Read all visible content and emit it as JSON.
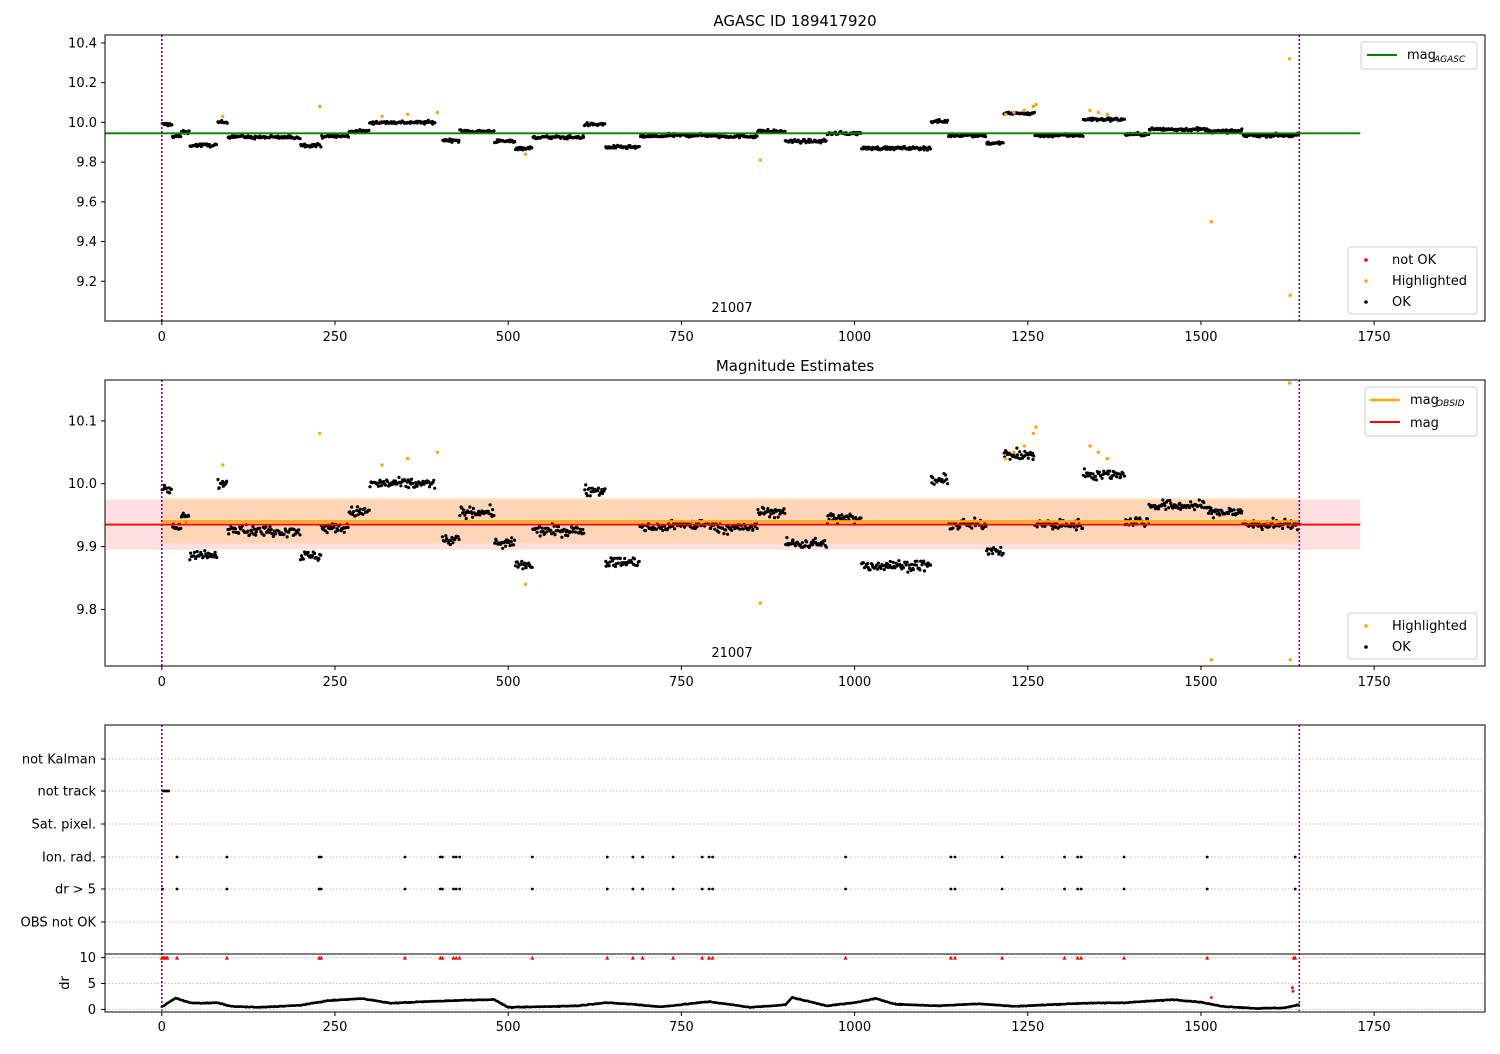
{
  "chart_data": [
    {
      "type": "scatter",
      "title": "AGASC ID 189417920",
      "xlim": [
        -82,
        1910
      ],
      "ylim": [
        9.0,
        10.44
      ],
      "xticks": [
        "0",
        "250",
        "500",
        "750",
        "1000",
        "1250",
        "1500",
        "1750"
      ],
      "yticks": [
        "9.2",
        "9.4",
        "9.6",
        "9.8",
        "10.0",
        "10.2",
        "10.4"
      ],
      "obsid_label": "21007",
      "obs_bounds": [
        0,
        1642
      ],
      "mag_agasc": 9.945,
      "mag_line_xrange": [
        -82,
        1730
      ],
      "colors": {
        "ok": "#000000",
        "highlighted": "#ffa500",
        "not_ok": "#ff0000",
        "agasc_line": "#008000",
        "bounds": "#800080"
      },
      "legend_top": [
        {
          "label": "mag",
          "sub": "AGASC",
          "color": "#008000",
          "kind": "line"
        }
      ],
      "legend_bottom": [
        {
          "label": "not OK",
          "color": "#ff0000",
          "kind": "dot"
        },
        {
          "label": "Highlighted",
          "color": "#ffa500",
          "kind": "dot"
        },
        {
          "label": "OK",
          "color": "#000000",
          "kind": "dot"
        }
      ],
      "segments": [
        [
          0,
          15,
          9.99
        ],
        [
          15,
          28,
          9.93
        ],
        [
          28,
          40,
          9.95
        ],
        [
          40,
          80,
          9.885
        ],
        [
          80,
          95,
          10.0
        ],
        [
          95,
          120,
          9.93
        ],
        [
          120,
          200,
          9.925
        ],
        [
          200,
          230,
          9.885
        ],
        [
          230,
          270,
          9.93
        ],
        [
          270,
          300,
          9.955
        ],
        [
          300,
          395,
          10.0
        ],
        [
          405,
          430,
          9.91
        ],
        [
          430,
          480,
          9.955
        ],
        [
          480,
          510,
          9.905
        ],
        [
          510,
          535,
          9.87
        ],
        [
          535,
          610,
          9.925
        ],
        [
          610,
          640,
          9.99
        ],
        [
          640,
          690,
          9.875
        ],
        [
          690,
          730,
          9.93
        ],
        [
          730,
          800,
          9.935
        ],
        [
          800,
          860,
          9.93
        ],
        [
          860,
          900,
          9.955
        ],
        [
          900,
          960,
          9.905
        ],
        [
          960,
          1010,
          9.945
        ],
        [
          1010,
          1110,
          9.87
        ],
        [
          1110,
          1135,
          10.005
        ],
        [
          1135,
          1190,
          9.935
        ],
        [
          1190,
          1215,
          9.895
        ],
        [
          1215,
          1260,
          10.045
        ],
        [
          1260,
          1330,
          9.935
        ],
        [
          1330,
          1390,
          10.015
        ],
        [
          1390,
          1425,
          9.94
        ],
        [
          1425,
          1510,
          9.965
        ],
        [
          1510,
          1560,
          9.955
        ],
        [
          1560,
          1642,
          9.935
        ]
      ],
      "highlighted_points": [
        [
          88,
          10.03
        ],
        [
          228,
          10.08
        ],
        [
          318,
          10.03
        ],
        [
          355,
          10.04
        ],
        [
          398,
          10.05
        ],
        [
          525,
          9.84
        ],
        [
          864,
          9.81
        ],
        [
          1218,
          10.04
        ],
        [
          1230,
          10.05
        ],
        [
          1245,
          10.06
        ],
        [
          1258,
          10.08
        ],
        [
          1262,
          10.09
        ],
        [
          1340,
          10.06
        ],
        [
          1352,
          10.05
        ],
        [
          1365,
          10.04
        ],
        [
          1515,
          9.5
        ],
        [
          1628,
          10.32
        ],
        [
          1629,
          9.13
        ]
      ]
    },
    {
      "type": "scatter",
      "title": "Magnitude Estimates",
      "xlim": [
        -82,
        1910
      ],
      "ylim": [
        9.71,
        10.165
      ],
      "xticks": [
        "0",
        "250",
        "500",
        "750",
        "1000",
        "1250",
        "1500",
        "1750"
      ],
      "yticks": [
        "9.8",
        "9.9",
        "10.0",
        "10.1"
      ],
      "obsid_label": "21007",
      "obs_bounds": [
        0,
        1642
      ],
      "mag_obsid": 9.94,
      "mag_obsid_band": [
        9.905,
        9.978
      ],
      "mag": 9.935,
      "mag_band": [
        9.895,
        9.975
      ],
      "mag_line_xrange": [
        -82,
        1730
      ],
      "colors": {
        "ok": "#000000",
        "highlighted": "#ffa500",
        "mag": "#ff0000",
        "mag_obsid": "#ffa500",
        "bounds": "#800080"
      },
      "legend_top": [
        {
          "label": "mag",
          "sub": "OBSID",
          "color": "#ffa500",
          "kind": "line"
        },
        {
          "label": "mag",
          "sub": "",
          "color": "#ff0000",
          "kind": "line"
        }
      ],
      "legend_bottom": [
        {
          "label": "Highlighted",
          "color": "#ffa500",
          "kind": "dot"
        },
        {
          "label": "OK",
          "color": "#000000",
          "kind": "dot"
        }
      ],
      "segments": [
        [
          0,
          15,
          9.99
        ],
        [
          15,
          28,
          9.93
        ],
        [
          28,
          40,
          9.95
        ],
        [
          40,
          80,
          9.885
        ],
        [
          80,
          95,
          10.0
        ],
        [
          95,
          120,
          9.93
        ],
        [
          120,
          200,
          9.925
        ],
        [
          200,
          230,
          9.885
        ],
        [
          230,
          270,
          9.93
        ],
        [
          270,
          300,
          9.955
        ],
        [
          300,
          395,
          10.0
        ],
        [
          405,
          430,
          9.91
        ],
        [
          430,
          480,
          9.955
        ],
        [
          480,
          510,
          9.905
        ],
        [
          510,
          535,
          9.87
        ],
        [
          535,
          610,
          9.925
        ],
        [
          610,
          640,
          9.99
        ],
        [
          640,
          690,
          9.875
        ],
        [
          690,
          730,
          9.93
        ],
        [
          730,
          800,
          9.935
        ],
        [
          800,
          860,
          9.93
        ],
        [
          860,
          900,
          9.955
        ],
        [
          900,
          960,
          9.905
        ],
        [
          960,
          1010,
          9.945
        ],
        [
          1010,
          1110,
          9.87
        ],
        [
          1110,
          1135,
          10.005
        ],
        [
          1135,
          1190,
          9.935
        ],
        [
          1190,
          1215,
          9.895
        ],
        [
          1215,
          1260,
          10.045
        ],
        [
          1260,
          1330,
          9.935
        ],
        [
          1330,
          1390,
          10.015
        ],
        [
          1390,
          1425,
          9.94
        ],
        [
          1425,
          1510,
          9.965
        ],
        [
          1510,
          1560,
          9.955
        ],
        [
          1560,
          1642,
          9.935
        ]
      ],
      "highlighted_points": [
        [
          88,
          10.03
        ],
        [
          228,
          10.08
        ],
        [
          318,
          10.03
        ],
        [
          355,
          10.04
        ],
        [
          398,
          10.05
        ],
        [
          525,
          9.84
        ],
        [
          864,
          9.81
        ],
        [
          1218,
          10.04
        ],
        [
          1230,
          10.05
        ],
        [
          1245,
          10.06
        ],
        [
          1258,
          10.08
        ],
        [
          1262,
          10.09
        ],
        [
          1340,
          10.06
        ],
        [
          1352,
          10.05
        ],
        [
          1365,
          10.04
        ],
        [
          1515,
          9.72
        ],
        [
          1628,
          10.16
        ],
        [
          1629,
          9.72
        ]
      ]
    },
    {
      "type": "scatter",
      "title": "",
      "xlim": [
        -82,
        1910
      ],
      "xticks": [
        "0",
        "250",
        "500",
        "750",
        "1000",
        "1250",
        "1500",
        "1750"
      ],
      "flag_rows": [
        "not Kalman",
        "not track",
        "Sat. pixel.",
        "Ion. rad.",
        "dr > 5",
        "OBS not OK"
      ],
      "obs_bounds": [
        0,
        1642
      ],
      "flag_times": {
        "not Kalman": [],
        "not track": [
          2,
          4,
          6,
          8,
          10
        ],
        "Sat. pixel.": [],
        "Ion. rad.": [
          22,
          94,
          227,
          230,
          351,
          402,
          405,
          421,
          425,
          430,
          535,
          643,
          680,
          694,
          738,
          780,
          790,
          795,
          987,
          1139,
          1145,
          1213,
          1303,
          1322,
          1327,
          1389,
          1509,
          1636
        ],
        "dr > 5": [
          1,
          22,
          94,
          227,
          230,
          351,
          402,
          405,
          421,
          425,
          430,
          535,
          643,
          680,
          694,
          738,
          780,
          790,
          795,
          987,
          1139,
          1145,
          1213,
          1303,
          1322,
          1327,
          1389,
          1509,
          1636
        ],
        "OBS not OK": []
      },
      "dr": {
        "ylabel": "dr",
        "yticks": [
          "0",
          "5",
          "10"
        ],
        "ylim": [
          -0.5,
          10.7
        ],
        "clip_value": 10,
        "clip_times": [
          0,
          2,
          4,
          6,
          8,
          22,
          94,
          227,
          230,
          351,
          402,
          405,
          421,
          425,
          430,
          535,
          643,
          680,
          694,
          738,
          780,
          790,
          795,
          987,
          1139,
          1145,
          1213,
          1303,
          1322,
          1327,
          1389,
          1509,
          1634,
          1636
        ],
        "outliers": [
          [
            1632,
            4.2
          ],
          [
            1633,
            3.5
          ],
          [
            1515,
            2.3
          ]
        ],
        "profile": [
          [
            0,
            0.5
          ],
          [
            20,
            2.2
          ],
          [
            40,
            1.3
          ],
          [
            60,
            1.2
          ],
          [
            80,
            1.3
          ],
          [
            100,
            0.6
          ],
          [
            140,
            0.4
          ],
          [
            200,
            0.8
          ],
          [
            240,
            1.7
          ],
          [
            290,
            2.1
          ],
          [
            330,
            1.2
          ],
          [
            380,
            1.5
          ],
          [
            440,
            1.8
          ],
          [
            480,
            1.9
          ],
          [
            500,
            0.4
          ],
          [
            540,
            0.5
          ],
          [
            600,
            0.7
          ],
          [
            640,
            1.3
          ],
          [
            680,
            1.0
          ],
          [
            720,
            0.5
          ],
          [
            790,
            1.5
          ],
          [
            850,
            0.4
          ],
          [
            900,
            0.9
          ],
          [
            910,
            2.3
          ],
          [
            960,
            0.7
          ],
          [
            1000,
            1.3
          ],
          [
            1030,
            2.1
          ],
          [
            1060,
            1.0
          ],
          [
            1120,
            0.7
          ],
          [
            1180,
            1.1
          ],
          [
            1230,
            0.6
          ],
          [
            1280,
            0.9
          ],
          [
            1330,
            1.2
          ],
          [
            1390,
            1.3
          ],
          [
            1460,
            1.9
          ],
          [
            1500,
            1.4
          ],
          [
            1530,
            0.6
          ],
          [
            1580,
            0.2
          ],
          [
            1620,
            0.3
          ],
          [
            1642,
            0.9
          ]
        ]
      }
    }
  ]
}
